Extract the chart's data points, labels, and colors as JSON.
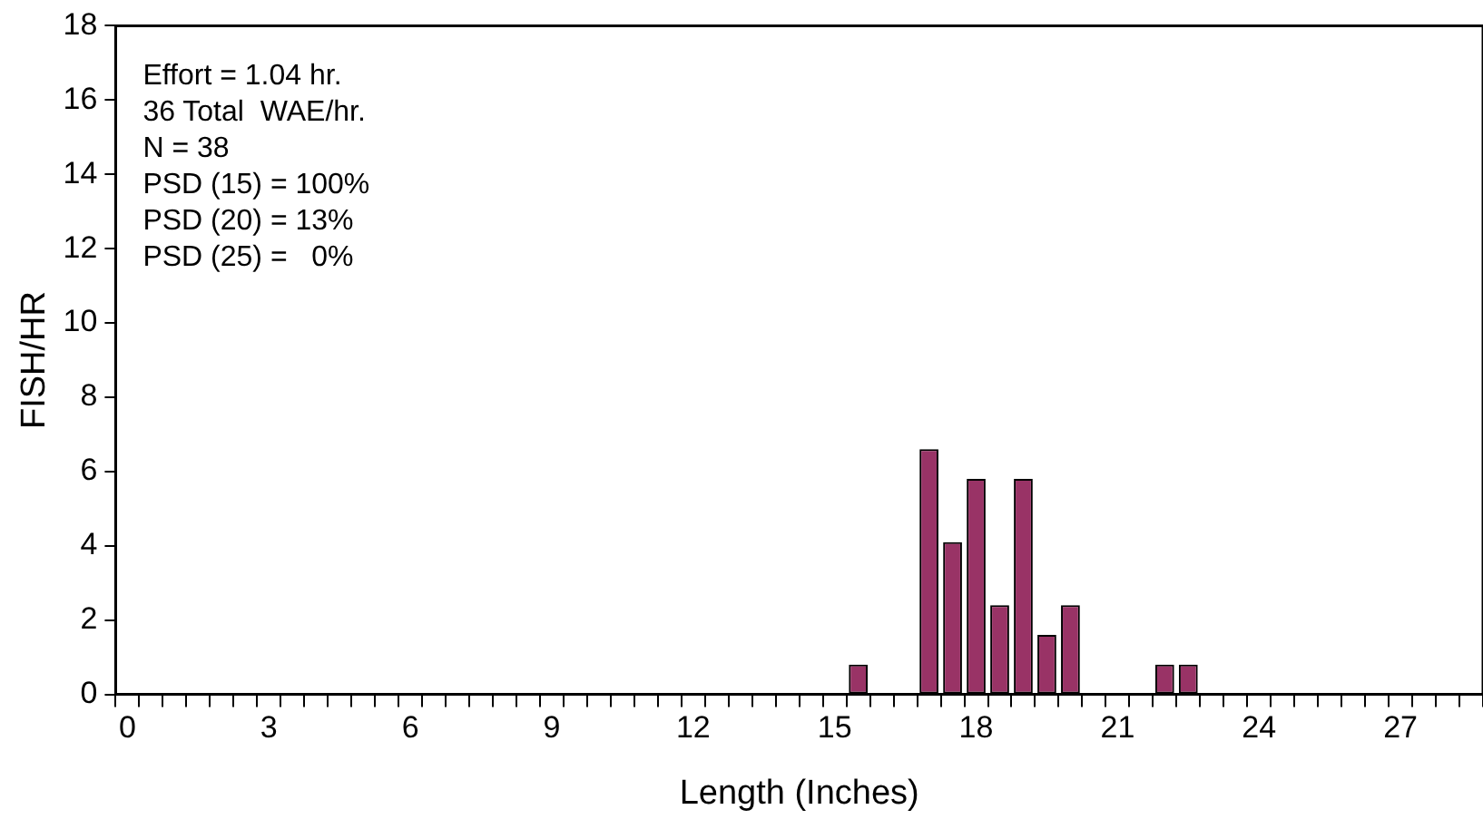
{
  "chart_data": {
    "type": "bar",
    "xlabel": "Length (Inches)",
    "ylabel": "FISH/HR",
    "categories": [
      "0",
      null,
      null,
      null,
      null,
      null,
      "3",
      null,
      null,
      null,
      null,
      null,
      "6",
      null,
      null,
      null,
      null,
      null,
      "9",
      null,
      null,
      null,
      null,
      null,
      "12",
      null,
      null,
      null,
      null,
      null,
      "15",
      null,
      null,
      null,
      null,
      null,
      "18",
      null,
      null,
      null,
      null,
      null,
      "21",
      null,
      null,
      null,
      null,
      null,
      "24",
      null,
      null,
      null,
      null,
      null,
      "27",
      null,
      null,
      null
    ],
    "values": [
      0,
      0,
      0,
      0,
      0,
      0,
      0,
      0,
      0,
      0,
      0,
      0,
      0,
      0,
      0,
      0,
      0,
      0,
      0,
      0,
      0,
      0,
      0,
      0,
      0,
      0,
      0,
      0,
      0,
      0,
      0,
      0.8,
      0,
      0,
      6.6,
      4.1,
      5.8,
      2.4,
      5.8,
      1.6,
      2.4,
      0,
      0,
      0,
      0.8,
      0.8,
      0,
      0,
      0,
      0,
      0,
      0,
      0,
      0,
      0,
      0,
      0,
      0
    ],
    "color": "#993366",
    "ylim": [
      0,
      18
    ],
    "yticks": [
      0,
      2,
      4,
      6,
      8,
      10,
      12,
      14,
      16,
      18
    ],
    "grid": false,
    "annotations": [
      "Effort = 1.04 hr.",
      "36 Total  WAE/hr.",
      "N = 38",
      "PSD (15) = 100%",
      "PSD (20) = 13%",
      "PSD (25) =   0%"
    ]
  }
}
